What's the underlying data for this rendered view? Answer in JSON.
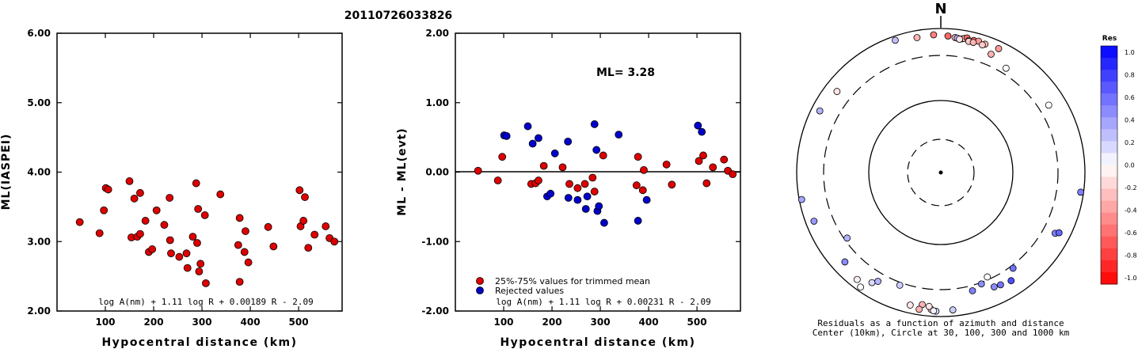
{
  "title": "20110726033826",
  "chart_data": [
    {
      "type": "scatter",
      "xlabel": "Hypocentral distance (km)",
      "ylabel": "ML(IASPEI)",
      "xlim": [
        0,
        590
      ],
      "ylim": [
        2.0,
        6.0
      ],
      "xticks": [
        100,
        200,
        300,
        400,
        500
      ],
      "yticks": [
        2.0,
        3.0,
        4.0,
        5.0,
        6.0
      ],
      "ytick_labels": [
        "2.00",
        "3.00",
        "4.00",
        "5.00",
        "6.00"
      ],
      "formula": "log A(nm) + 1.11 log R + 0.00189 R - 2.09",
      "series": [
        {
          "color": "#dd0000",
          "points": [
            [
              47,
              3.28
            ],
            [
              88,
              3.12
            ],
            [
              97,
              3.45
            ],
            [
              101,
              3.77
            ],
            [
              106,
              3.75
            ],
            [
              150,
              3.87
            ],
            [
              154,
              3.06
            ],
            [
              160,
              3.62
            ],
            [
              166,
              3.07
            ],
            [
              172,
              3.11
            ],
            [
              172,
              3.7
            ],
            [
              183,
              3.3
            ],
            [
              190,
              2.85
            ],
            [
              197,
              2.89
            ],
            [
              206,
              3.45
            ],
            [
              222,
              3.24
            ],
            [
              233,
              3.63
            ],
            [
              234,
              3.02
            ],
            [
              236,
              2.83
            ],
            [
              253,
              2.78
            ],
            [
              268,
              2.83
            ],
            [
              270,
              2.62
            ],
            [
              281,
              3.07
            ],
            [
              288,
              3.84
            ],
            [
              290,
              2.98
            ],
            [
              292,
              3.47
            ],
            [
              294,
              2.57
            ],
            [
              297,
              2.68
            ],
            [
              306,
              3.38
            ],
            [
              308,
              2.4
            ],
            [
              338,
              3.68
            ],
            [
              375,
              2.95
            ],
            [
              378,
              3.34
            ],
            [
              378,
              2.42
            ],
            [
              388,
              2.85
            ],
            [
              390,
              3.15
            ],
            [
              396,
              2.7
            ],
            [
              437,
              3.21
            ],
            [
              448,
              2.93
            ],
            [
              502,
              3.74
            ],
            [
              504,
              3.22
            ],
            [
              510,
              3.3
            ],
            [
              513,
              3.64
            ],
            [
              520,
              2.91
            ],
            [
              533,
              3.1
            ],
            [
              556,
              3.22
            ],
            [
              564,
              3.05
            ],
            [
              574,
              3.0
            ]
          ]
        }
      ]
    },
    {
      "type": "scatter",
      "xlabel": "Hypocentral distance (km)",
      "ylabel": "ML - ML(evt)",
      "xlim": [
        0,
        590
      ],
      "ylim": [
        -2.0,
        2.0
      ],
      "xticks": [
        100,
        200,
        300,
        400,
        500
      ],
      "yticks": [
        -2.0,
        -1.0,
        0.0,
        1.0,
        2.0
      ],
      "ytick_labels": [
        "-2.00",
        "-1.00",
        "0.00",
        "1.00",
        "2.00"
      ],
      "annotation": "ML= 3.28",
      "formula": "log A(nm) + 1.11 log R + 0.00231 R - 2.09",
      "legend": [
        "25%-75% values for trimmed mean",
        "Rejected values"
      ],
      "series": [
        {
          "name": "25%-75% values for trimmed mean",
          "color": "#dd0000",
          "points": [
            [
              47,
              0.02
            ],
            [
              88,
              -0.12
            ],
            [
              97,
              0.22
            ],
            [
              157,
              -0.17
            ],
            [
              166,
              -0.16
            ],
            [
              172,
              -0.12
            ],
            [
              183,
              0.09
            ],
            [
              222,
              0.07
            ],
            [
              236,
              -0.17
            ],
            [
              253,
              -0.23
            ],
            [
              268,
              -0.17
            ],
            [
              284,
              -0.08
            ],
            [
              288,
              -0.28
            ],
            [
              306,
              0.24
            ],
            [
              375,
              -0.19
            ],
            [
              378,
              0.22
            ],
            [
              388,
              -0.26
            ],
            [
              390,
              0.03
            ],
            [
              437,
              0.11
            ],
            [
              448,
              -0.18
            ],
            [
              504,
              0.16
            ],
            [
              513,
              0.24
            ],
            [
              520,
              -0.16
            ],
            [
              533,
              0.07
            ],
            [
              556,
              0.18
            ],
            [
              564,
              0.02
            ],
            [
              574,
              -0.03
            ]
          ]
        },
        {
          "name": "Rejected values",
          "color": "#0000cc",
          "points": [
            [
              101,
              0.53
            ],
            [
              106,
              0.52
            ],
            [
              150,
              0.66
            ],
            [
              160,
              0.41
            ],
            [
              172,
              0.49
            ],
            [
              190,
              -0.35
            ],
            [
              197,
              -0.31
            ],
            [
              206,
              0.27
            ],
            [
              233,
              0.44
            ],
            [
              234,
              -0.37
            ],
            [
              253,
              -0.4
            ],
            [
              270,
              -0.53
            ],
            [
              273,
              -0.35
            ],
            [
              288,
              0.69
            ],
            [
              292,
              0.32
            ],
            [
              294,
              -0.56
            ],
            [
              297,
              -0.49
            ],
            [
              308,
              -0.73
            ],
            [
              338,
              0.54
            ],
            [
              378,
              -0.7
            ],
            [
              396,
              -0.4
            ],
            [
              502,
              0.67
            ],
            [
              510,
              0.58
            ]
          ]
        }
      ]
    },
    {
      "type": "scatter",
      "subtype": "polar",
      "north_label": "N",
      "caption_line1": "Residuals as a function of azimuth and distance",
      "caption_line2": "Center (10km), Circle at 30, 100, 300 and 1000 km",
      "rings_km": [
        30,
        100,
        300,
        1000
      ],
      "colorbar": {
        "title": "Res",
        "labels": [
          "1.0",
          "0.8",
          "0.6",
          "0.4",
          "0.2",
          "0.0",
          "-0.2",
          "-0.4",
          "-0.6",
          "-0.8",
          "-1.0"
        ],
        "positive_color": "#0000ff",
        "negative_color": "#ff0000"
      },
      "stations_azimuth_distance_residual": [
        [
          -19,
          830,
          0.25
        ],
        [
          -10,
          730,
          -0.3
        ],
        [
          -3,
          760,
          -0.5
        ],
        [
          3,
          720,
          -0.6
        ],
        [
          6,
          690,
          -0.3
        ],
        [
          7,
          680,
          0.3
        ],
        [
          9,
          680,
          -0.3
        ],
        [
          10,
          700,
          -0.2
        ],
        [
          11,
          735,
          -0.6
        ],
        [
          12,
          665,
          -0.2
        ],
        [
          14,
          700,
          -0.6
        ],
        [
          16,
          720,
          -0.4
        ],
        [
          19,
          690,
          -0.3
        ],
        [
          8,
          655,
          -0.1
        ],
        [
          12,
          640,
          -0.2
        ],
        [
          14,
          640,
          -0.3
        ],
        [
          18,
          645,
          -0.2
        ],
        [
          25,
          720,
          -0.4
        ],
        [
          23,
          500,
          -0.3
        ],
        [
          -52,
          575,
          -0.1
        ],
        [
          -63,
          690,
          0.3
        ],
        [
          58,
          470,
          0.0
        ],
        [
          98,
          880,
          0.5
        ],
        [
          -111,
          690,
          0.4
        ],
        [
          -101,
          900,
          0.35
        ],
        [
          -133,
          560,
          0.45
        ],
        [
          -148,
          530,
          0.15
        ],
        [
          -142,
          690,
          -0.05
        ],
        [
          -145,
          830,
          0.0
        ],
        [
          -160,
          340,
          0.2
        ],
        [
          -167,
          700,
          -0.1
        ],
        [
          -172,
          620,
          -0.3
        ],
        [
          -176,
          740,
          -0.2
        ],
        [
          -175,
          650,
          -0.1
        ],
        [
          -171,
          780,
          -0.3
        ],
        [
          -178,
          790,
          0.15
        ],
        [
          -177,
          780,
          0.05
        ],
        [
          -185,
          760,
          0.2
        ],
        [
          160,
          320,
          0.45
        ],
        [
          165,
          380,
          0.5
        ],
        [
          155,
          450,
          0.45
        ],
        [
          152,
          470,
          0.55
        ],
        [
          147,
          510,
          0.7
        ],
        [
          118,
          520,
          0.5
        ],
        [
          117,
          600,
          0.6
        ],
        [
          143,
          340,
          0.55
        ],
        [
          32,
          390,
          0.0
        ],
        [
          156,
          280,
          0.0
        ],
        [
          -125,
          280,
          0.3
        ],
        [
          -150,
          440,
          0.3
        ]
      ]
    }
  ]
}
